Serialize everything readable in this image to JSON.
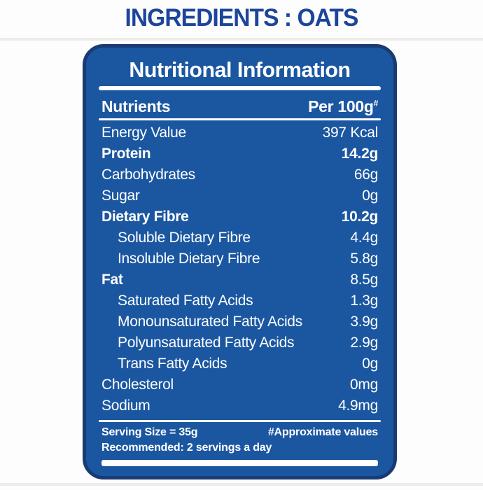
{
  "page": {
    "title": "INGREDIENTS : OATS"
  },
  "card": {
    "header": "Nutritional Information",
    "columns": {
      "nutrient": "Nutrients",
      "per": "Per 100g",
      "per_sup": "#"
    },
    "rows": [
      {
        "label": "Energy Value",
        "value": "397 Kcal",
        "label_bold": false,
        "value_bold": false,
        "indent": false
      },
      {
        "label": "Protein",
        "value": "14.2g",
        "label_bold": true,
        "value_bold": true,
        "indent": false
      },
      {
        "label": "Carbohydrates",
        "value": "66g",
        "label_bold": false,
        "value_bold": false,
        "indent": false
      },
      {
        "label": "Sugar",
        "value": "0g",
        "label_bold": false,
        "value_bold": false,
        "indent": false
      },
      {
        "label": "Dietary Fibre",
        "value": "10.2g",
        "label_bold": true,
        "value_bold": true,
        "indent": false
      },
      {
        "label": "Soluble Dietary Fibre",
        "value": "4.4g",
        "label_bold": false,
        "value_bold": false,
        "indent": true
      },
      {
        "label": "Insoluble Dietary Fibre",
        "value": "5.8g",
        "label_bold": false,
        "value_bold": false,
        "indent": true
      },
      {
        "label": "Fat",
        "value": "8.5g",
        "label_bold": true,
        "value_bold": false,
        "indent": false
      },
      {
        "label": "Saturated Fatty Acids",
        "value": "1.3g",
        "label_bold": false,
        "value_bold": false,
        "indent": true
      },
      {
        "label": "Monounsaturated Fatty Acids",
        "value": "3.9g",
        "label_bold": false,
        "value_bold": false,
        "indent": true
      },
      {
        "label": "Polyunsaturated Fatty Acids",
        "value": "2.9g",
        "label_bold": false,
        "value_bold": false,
        "indent": true
      },
      {
        "label": "Trans Fatty Acids",
        "value": "0g",
        "label_bold": false,
        "value_bold": false,
        "indent": true
      },
      {
        "label": "Cholesterol",
        "value": "0mg",
        "label_bold": false,
        "value_bold": false,
        "indent": false
      },
      {
        "label": "Sodium",
        "value": "4.9mg",
        "label_bold": false,
        "value_bold": false,
        "indent": false
      }
    ],
    "footer": {
      "serving_size": "Serving Size = 35g",
      "approx_note": "#Approximate values",
      "recommended": "Recommended: 2 servings a day"
    }
  },
  "colors": {
    "card_fill": "#1b57a1",
    "card_border": "#1a3a74",
    "title_blue": "#1c459b",
    "text_white": "#ffffff"
  }
}
